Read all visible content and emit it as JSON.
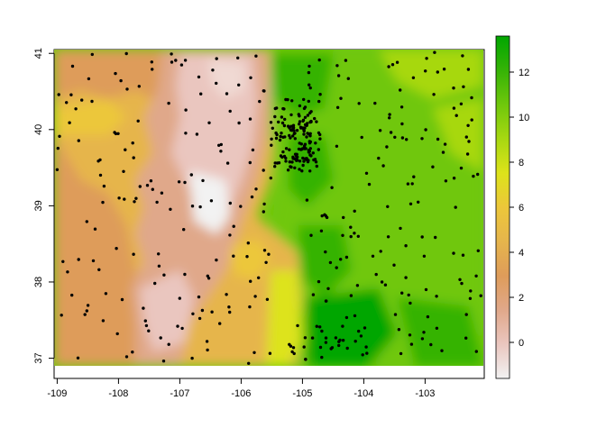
{
  "map": {
    "type": "raster-with-points",
    "x_ticks": [
      "-109",
      "-108",
      "-107",
      "-106",
      "-105",
      "-104",
      "-103"
    ],
    "y_ticks": [
      "37",
      "38",
      "39",
      "40",
      "41"
    ],
    "xlim": [
      -109.05,
      -102.05
    ],
    "ylim": [
      36.9,
      41.05
    ],
    "colorbar": {
      "ticks": [
        "0",
        "2",
        "4",
        "6",
        "8",
        "10",
        "12"
      ],
      "range": [
        -1.6,
        13.6
      ],
      "palette": [
        "#f2f2f2",
        "#eac6bf",
        "#e0a88a",
        "#de9c5a",
        "#e6b54c",
        "#ecc73a",
        "#dde31a",
        "#a7d811",
        "#6fc70c",
        "#35b306",
        "#00a600"
      ]
    },
    "colors": {
      "points": "#000000",
      "frame": "#000000"
    }
  }
}
